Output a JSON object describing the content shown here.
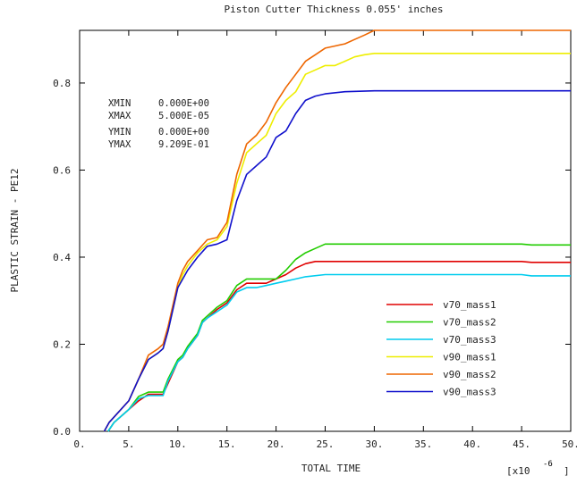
{
  "chart_data": {
    "type": "line",
    "title": "Piston Cutter Thickness 0.055' inches",
    "xlabel": "TOTAL TIME",
    "ylabel": "PLASTIC STRAIN - PE12",
    "x_multiplier_label": "[x10",
    "x_multiplier_exp": "-6",
    "x_multiplier_close": "]",
    "xlim": [
      0,
      50
    ],
    "ylim": [
      0,
      0.9209
    ],
    "x_ticks": [
      0,
      5,
      10,
      15,
      20,
      25,
      30,
      35,
      40,
      45,
      50
    ],
    "x_tick_labels": [
      "0.",
      "5.",
      "10.",
      "15.",
      "20.",
      "25.",
      "30.",
      "35.",
      "40.",
      "45.",
      "50."
    ],
    "y_ticks": [
      0,
      0.2,
      0.4,
      0.6,
      0.8
    ],
    "y_tick_labels": [
      "0.0",
      "0.2",
      "0.4",
      "0.6",
      "0.8"
    ],
    "grid": false,
    "legend_position": "bottom-right",
    "info_block": [
      {
        "label": "XMIN",
        "value": "0.000E+00"
      },
      {
        "label": "XMAX",
        "value": "5.000E-05"
      },
      {
        "label": "YMIN",
        "value": "0.000E+00"
      },
      {
        "label": "YMAX",
        "value": "9.209E-01"
      }
    ],
    "series": [
      {
        "name": "v70_mass1",
        "color": "#e00000",
        "points": [
          [
            2.9,
            0
          ],
          [
            3.5,
            0.02
          ],
          [
            5,
            0.05
          ],
          [
            6,
            0.07
          ],
          [
            7,
            0.085
          ],
          [
            8,
            0.085
          ],
          [
            8.5,
            0.085
          ],
          [
            9,
            0.11
          ],
          [
            10,
            0.16
          ],
          [
            10.5,
            0.17
          ],
          [
            11,
            0.19
          ],
          [
            12,
            0.22
          ],
          [
            12.5,
            0.25
          ],
          [
            13,
            0.26
          ],
          [
            14,
            0.28
          ],
          [
            15,
            0.295
          ],
          [
            16,
            0.325
          ],
          [
            17,
            0.34
          ],
          [
            18,
            0.34
          ],
          [
            19,
            0.34
          ],
          [
            20,
            0.35
          ],
          [
            21,
            0.36
          ],
          [
            22,
            0.375
          ],
          [
            23,
            0.385
          ],
          [
            24,
            0.39
          ],
          [
            25,
            0.39
          ],
          [
            30,
            0.39
          ],
          [
            40,
            0.39
          ],
          [
            45,
            0.39
          ],
          [
            46,
            0.388
          ],
          [
            50,
            0.388
          ]
        ]
      },
      {
        "name": "v70_mass2",
        "color": "#22cc00",
        "points": [
          [
            2.9,
            0
          ],
          [
            3.5,
            0.02
          ],
          [
            5,
            0.05
          ],
          [
            6,
            0.08
          ],
          [
            7,
            0.09
          ],
          [
            8,
            0.09
          ],
          [
            8.5,
            0.09
          ],
          [
            9,
            0.12
          ],
          [
            10,
            0.165
          ],
          [
            10.5,
            0.175
          ],
          [
            11,
            0.195
          ],
          [
            12,
            0.225
          ],
          [
            12.5,
            0.255
          ],
          [
            13,
            0.265
          ],
          [
            14,
            0.285
          ],
          [
            15,
            0.3
          ],
          [
            16,
            0.335
          ],
          [
            17,
            0.35
          ],
          [
            18,
            0.35
          ],
          [
            19,
            0.35
          ],
          [
            20,
            0.35
          ],
          [
            21,
            0.37
          ],
          [
            22,
            0.395
          ],
          [
            23,
            0.41
          ],
          [
            24,
            0.42
          ],
          [
            25,
            0.43
          ],
          [
            30,
            0.43
          ],
          [
            40,
            0.43
          ],
          [
            45,
            0.43
          ],
          [
            46,
            0.428
          ],
          [
            50,
            0.428
          ]
        ]
      },
      {
        "name": "v70_mass3",
        "color": "#00ccee",
        "points": [
          [
            2.9,
            0
          ],
          [
            3.5,
            0.02
          ],
          [
            5,
            0.05
          ],
          [
            6,
            0.075
          ],
          [
            7,
            0.082
          ],
          [
            8,
            0.082
          ],
          [
            8.5,
            0.082
          ],
          [
            9,
            0.115
          ],
          [
            10,
            0.16
          ],
          [
            10.5,
            0.17
          ],
          [
            11,
            0.19
          ],
          [
            12,
            0.22
          ],
          [
            12.5,
            0.25
          ],
          [
            13,
            0.26
          ],
          [
            14,
            0.275
          ],
          [
            15,
            0.29
          ],
          [
            16,
            0.32
          ],
          [
            17,
            0.33
          ],
          [
            18,
            0.33
          ],
          [
            19,
            0.335
          ],
          [
            20,
            0.34
          ],
          [
            21,
            0.345
          ],
          [
            22,
            0.35
          ],
          [
            23,
            0.355
          ],
          [
            25,
            0.36
          ],
          [
            30,
            0.36
          ],
          [
            40,
            0.36
          ],
          [
            45,
            0.36
          ],
          [
            46,
            0.357
          ],
          [
            50,
            0.357
          ]
        ]
      },
      {
        "name": "v90_mass1",
        "color": "#eeee00",
        "points": [
          [
            2.5,
            0
          ],
          [
            3,
            0.02
          ],
          [
            5,
            0.07
          ],
          [
            6,
            0.12
          ],
          [
            7,
            0.165
          ],
          [
            8,
            0.18
          ],
          [
            8.5,
            0.19
          ],
          [
            9,
            0.23
          ],
          [
            10,
            0.33
          ],
          [
            10.5,
            0.36
          ],
          [
            11,
            0.38
          ],
          [
            12,
            0.41
          ],
          [
            13,
            0.43
          ],
          [
            14,
            0.44
          ],
          [
            15,
            0.47
          ],
          [
            16,
            0.57
          ],
          [
            17,
            0.64
          ],
          [
            18,
            0.66
          ],
          [
            19,
            0.68
          ],
          [
            20,
            0.73
          ],
          [
            21,
            0.76
          ],
          [
            22,
            0.78
          ],
          [
            23,
            0.82
          ],
          [
            24,
            0.83
          ],
          [
            25,
            0.84
          ],
          [
            26,
            0.84
          ],
          [
            27,
            0.85
          ],
          [
            28,
            0.86
          ],
          [
            29,
            0.865
          ],
          [
            30,
            0.868
          ],
          [
            50,
            0.868
          ]
        ]
      },
      {
        "name": "v90_mass2",
        "color": "#ee6600",
        "points": [
          [
            2.5,
            0
          ],
          [
            3,
            0.02
          ],
          [
            5,
            0.07
          ],
          [
            6,
            0.12
          ],
          [
            7,
            0.175
          ],
          [
            8,
            0.19
          ],
          [
            8.5,
            0.2
          ],
          [
            9,
            0.24
          ],
          [
            10,
            0.34
          ],
          [
            10.5,
            0.37
          ],
          [
            11,
            0.39
          ],
          [
            12,
            0.415
          ],
          [
            13,
            0.44
          ],
          [
            14,
            0.445
          ],
          [
            15,
            0.48
          ],
          [
            16,
            0.59
          ],
          [
            17,
            0.66
          ],
          [
            18,
            0.68
          ],
          [
            19,
            0.71
          ],
          [
            20,
            0.755
          ],
          [
            21,
            0.79
          ],
          [
            22,
            0.82
          ],
          [
            23,
            0.85
          ],
          [
            24,
            0.865
          ],
          [
            25,
            0.88
          ],
          [
            26,
            0.885
          ],
          [
            27,
            0.89
          ],
          [
            28,
            0.9
          ],
          [
            29,
            0.91
          ],
          [
            30,
            0.921
          ],
          [
            50,
            0.921
          ]
        ]
      },
      {
        "name": "v90_mass3",
        "color": "#1010cc",
        "points": [
          [
            2.5,
            0
          ],
          [
            3,
            0.02
          ],
          [
            5,
            0.07
          ],
          [
            6,
            0.12
          ],
          [
            7,
            0.165
          ],
          [
            8,
            0.18
          ],
          [
            8.5,
            0.19
          ],
          [
            9,
            0.23
          ],
          [
            10,
            0.33
          ],
          [
            10.5,
            0.35
          ],
          [
            11,
            0.37
          ],
          [
            12,
            0.4
          ],
          [
            13,
            0.425
          ],
          [
            14,
            0.43
          ],
          [
            15,
            0.44
          ],
          [
            16,
            0.53
          ],
          [
            17,
            0.59
          ],
          [
            18,
            0.61
          ],
          [
            19,
            0.63
          ],
          [
            20,
            0.675
          ],
          [
            21,
            0.69
          ],
          [
            22,
            0.73
          ],
          [
            23,
            0.76
          ],
          [
            24,
            0.77
          ],
          [
            25,
            0.775
          ],
          [
            27,
            0.78
          ],
          [
            30,
            0.782
          ],
          [
            50,
            0.782
          ]
        ]
      }
    ]
  }
}
